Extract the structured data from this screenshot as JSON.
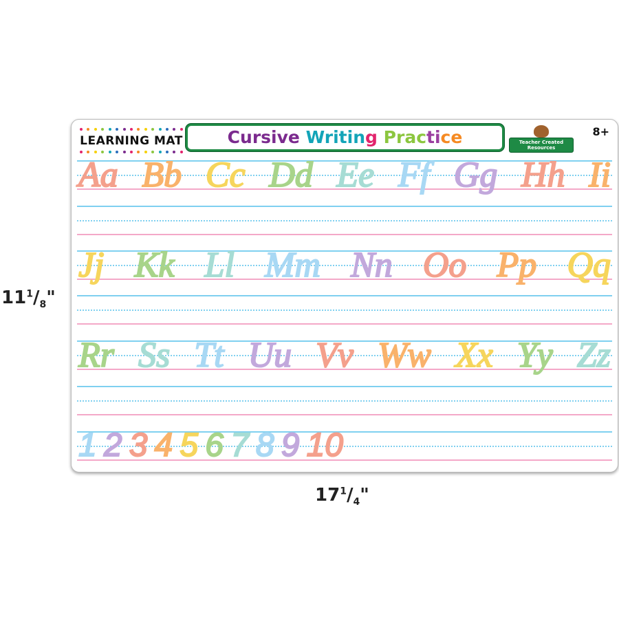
{
  "dimensions": {
    "height": {
      "whole": "11",
      "num": "1",
      "den": "8"
    },
    "width": {
      "whole": "17",
      "num": "1",
      "den": "4"
    }
  },
  "header": {
    "brand": "LEARNING MAT",
    "title_letters": [
      {
        "c": "C",
        "color": "#7b2a8e"
      },
      {
        "c": "u",
        "color": "#7b2a8e"
      },
      {
        "c": "r",
        "color": "#7b2a8e"
      },
      {
        "c": "s",
        "color": "#7b2a8e"
      },
      {
        "c": "i",
        "color": "#7b2a8e"
      },
      {
        "c": "v",
        "color": "#7b2a8e"
      },
      {
        "c": "e",
        "color": "#7b2a8e"
      },
      {
        "c": " ",
        "color": "#000"
      },
      {
        "c": "W",
        "color": "#13a4b8"
      },
      {
        "c": "r",
        "color": "#13a4b8"
      },
      {
        "c": "i",
        "color": "#13a4b8"
      },
      {
        "c": "t",
        "color": "#13a4b8"
      },
      {
        "c": "i",
        "color": "#13a4b8"
      },
      {
        "c": "n",
        "color": "#13a4b8"
      },
      {
        "c": "g",
        "color": "#e2246c"
      },
      {
        "c": " ",
        "color": "#000"
      },
      {
        "c": "P",
        "color": "#8cc63f"
      },
      {
        "c": "r",
        "color": "#8cc63f"
      },
      {
        "c": "a",
        "color": "#8cc63f"
      },
      {
        "c": "c",
        "color": "#8cc63f"
      },
      {
        "c": "t",
        "color": "#9b3fa0"
      },
      {
        "c": "i",
        "color": "#9b3fa0"
      },
      {
        "c": "c",
        "color": "#f58a22"
      },
      {
        "c": "e",
        "color": "#f58a22"
      }
    ],
    "publisher": "Teacher Created Resources",
    "age": "8+",
    "dot_colors": [
      "#e2246c",
      "#f58a22",
      "#f6d000",
      "#8cc63f",
      "#13a4b8",
      "#2a6ebd",
      "#7b2a8e"
    ]
  },
  "rows": [
    [
      {
        "t": "Aa",
        "color": "#f4a08c"
      },
      {
        "t": "Bb",
        "color": "#f9b26b"
      },
      {
        "t": "Cc",
        "color": "#f6d55c"
      },
      {
        "t": "Dd",
        "color": "#a8d48a"
      },
      {
        "t": "Ee",
        "color": "#a6dcd4"
      },
      {
        "t": "Ff",
        "color": "#a8d8f4"
      },
      {
        "t": "Gg",
        "color": "#c2a8dc"
      },
      {
        "t": "Hh",
        "color": "#f4a08c"
      },
      {
        "t": "Ii",
        "color": "#f9b26b"
      }
    ],
    [
      {
        "t": "Jj",
        "color": "#f6d55c"
      },
      {
        "t": "Kk",
        "color": "#a8d48a"
      },
      {
        "t": "Ll",
        "color": "#a6dcd4"
      },
      {
        "t": "Mm",
        "color": "#a8d8f4"
      },
      {
        "t": "Nn",
        "color": "#c2a8dc"
      },
      {
        "t": "Oo",
        "color": "#f4a08c"
      },
      {
        "t": "Pp",
        "color": "#f9b26b"
      },
      {
        "t": "Qq",
        "color": "#f6d55c"
      }
    ],
    [
      {
        "t": "Rr",
        "color": "#a8d48a"
      },
      {
        "t": "Ss",
        "color": "#a6dcd4"
      },
      {
        "t": "Tt",
        "color": "#a8d8f4"
      },
      {
        "t": "Uu",
        "color": "#c2a8dc"
      },
      {
        "t": "Vv",
        "color": "#f4a08c"
      },
      {
        "t": "Ww",
        "color": "#f9b26b"
      },
      {
        "t": "Xx",
        "color": "#f6d55c"
      },
      {
        "t": "Yy",
        "color": "#a8d48a"
      },
      {
        "t": "Zz",
        "color": "#a6dcd4"
      }
    ]
  ],
  "numbers": [
    {
      "t": "1",
      "color": "#a8d8f4"
    },
    {
      "t": "2",
      "color": "#c2a8dc"
    },
    {
      "t": "3",
      "color": "#f4a08c"
    },
    {
      "t": "4",
      "color": "#f9b26b"
    },
    {
      "t": "5",
      "color": "#f6d55c"
    },
    {
      "t": "6",
      "color": "#a8d48a"
    },
    {
      "t": "7",
      "color": "#a6dcd4"
    },
    {
      "t": "8",
      "color": "#a8d8f4"
    },
    {
      "t": "9",
      "color": "#c2a8dc"
    },
    {
      "t": "10",
      "color": "#f4a08c"
    }
  ]
}
